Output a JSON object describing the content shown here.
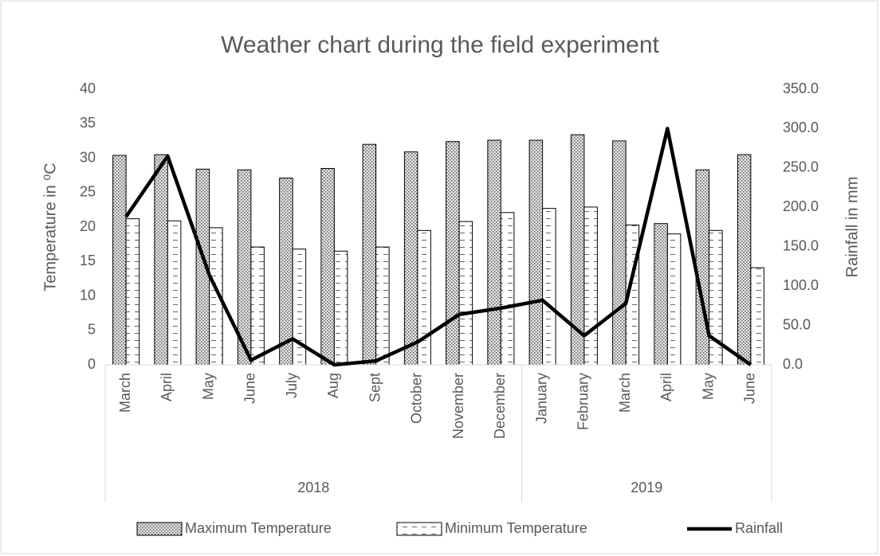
{
  "chart_data": {
    "type": "bar-line",
    "title": "Weather chart during the field experiment",
    "ylabel": "Temperature in ⁰C",
    "y2label": "Rainfall in mm",
    "categories": [
      "March",
      "April",
      "May",
      "June",
      "July",
      "Aug",
      "Sept",
      "October",
      "November",
      "December",
      "January",
      "February",
      "March",
      "April",
      "May",
      "June"
    ],
    "x_groups": [
      {
        "label": "2018",
        "size": 10
      },
      {
        "label": "2019",
        "size": 6
      }
    ],
    "series": [
      {
        "name": "Maximum Temperature",
        "type": "bar",
        "pattern": "crosshatch",
        "color": "#7f7f7f",
        "values": [
          30.4,
          30.5,
          28.4,
          28.3,
          27.1,
          28.5,
          32.0,
          30.9,
          32.4,
          32.6,
          32.6,
          33.4,
          32.5,
          20.5,
          28.3,
          30.5
        ]
      },
      {
        "name": "Minimum Temperature",
        "type": "bar",
        "pattern": "dashes",
        "color": "#7f7f7f",
        "values": [
          21.2,
          20.9,
          19.9,
          17.1,
          16.8,
          16.5,
          17.1,
          19.5,
          20.8,
          22.1,
          22.7,
          22.9,
          20.3,
          19.0,
          19.5,
          14.1
        ]
      },
      {
        "name": "Rainfall",
        "type": "line",
        "axis": "y2",
        "color": "#000000",
        "values": [
          188,
          265,
          114,
          6,
          33,
          0,
          5,
          29,
          64,
          72,
          82,
          37,
          78,
          300,
          37,
          0
        ]
      }
    ],
    "ylim": [
      0,
      40
    ],
    "yticks": [
      0,
      5,
      10,
      15,
      20,
      25,
      30,
      35,
      40
    ],
    "y2lim": [
      0,
      350
    ],
    "y2ticks": [
      {
        "value": 0,
        "label": "0.0"
      },
      {
        "value": 50,
        "label": "50.0"
      },
      {
        "value": 100,
        "label": "100.0"
      },
      {
        "value": 150,
        "label": "150.0"
      },
      {
        "value": 200,
        "label": "200.0"
      },
      {
        "value": 250,
        "label": "250.0"
      },
      {
        "value": 300,
        "label": "300.0"
      },
      {
        "value": 350,
        "label": "350.0"
      }
    ],
    "legend": "bottom"
  }
}
